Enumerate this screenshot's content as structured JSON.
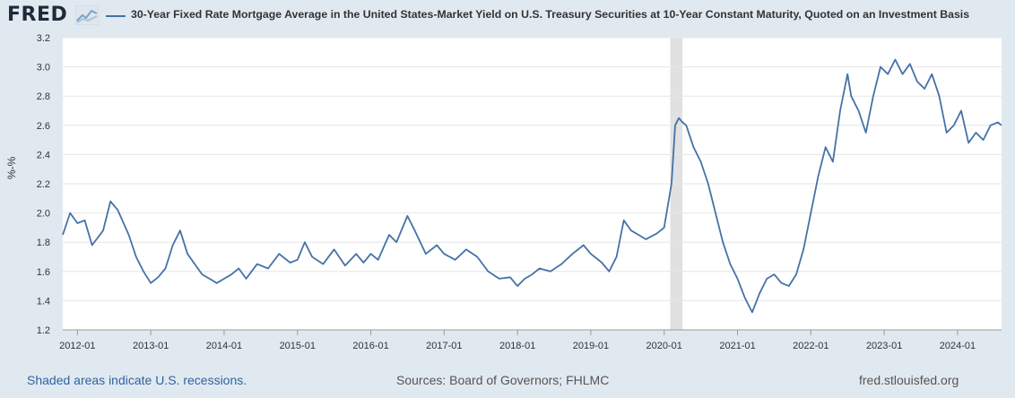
{
  "header": {
    "logo": "FRED",
    "title": "30-Year Fixed Rate Mortgage Average in the United States-Market Yield on U.S. Treasury Securities at 10-Year Constant Maturity, Quoted on an Investment Basis"
  },
  "footer": {
    "recession_note": "Shaded areas indicate U.S. recessions.",
    "sources": "Sources: Board of Governors; FHLMC",
    "site": "fred.stlouisfed.org"
  },
  "colors": {
    "line": "#4572a7",
    "background": "#e1e9f0",
    "plot": "#ffffff",
    "recession": "#e1e1e1"
  },
  "chart_data": {
    "type": "line",
    "title": "30-Year Fixed Rate Mortgage Average in the United States-Market Yield on U.S. Treasury Securities at 10-Year Constant Maturity, Quoted on an Investment Basis",
    "ylabel": "%-%",
    "xlabel": "",
    "ylim": [
      1.2,
      3.2
    ],
    "xlim": [
      2011.8,
      2024.6
    ],
    "yticks": [
      "1.2",
      "1.4",
      "1.6",
      "1.8",
      "2.0",
      "2.2",
      "2.4",
      "2.6",
      "2.8",
      "3.0",
      "3.2"
    ],
    "xticks": [
      "2012-01",
      "2013-01",
      "2014-01",
      "2015-01",
      "2016-01",
      "2017-01",
      "2018-01",
      "2019-01",
      "2020-01",
      "2021-01",
      "2022-01",
      "2023-01",
      "2024-01"
    ],
    "grid": true,
    "recessions": [
      [
        2020.083,
        2020.25
      ]
    ],
    "series": [
      {
        "x": [
          2011.8,
          2011.9,
          2012.0,
          2012.1,
          2012.2,
          2012.35,
          2012.45,
          2012.55,
          2012.7,
          2012.8,
          2012.9,
          2013.0,
          2013.1,
          2013.2,
          2013.3,
          2013.4,
          2013.5,
          2013.6,
          2013.7,
          2013.8,
          2013.9,
          2014.0,
          2014.1,
          2014.2,
          2014.3,
          2014.45,
          2014.6,
          2014.75,
          2014.9,
          2015.0,
          2015.1,
          2015.2,
          2015.35,
          2015.5,
          2015.65,
          2015.8,
          2015.9,
          2016.0,
          2016.1,
          2016.25,
          2016.35,
          2016.5,
          2016.6,
          2016.75,
          2016.9,
          2017.0,
          2017.15,
          2017.3,
          2017.45,
          2017.6,
          2017.75,
          2017.9,
          2018.0,
          2018.1,
          2018.2,
          2018.3,
          2018.45,
          2018.6,
          2018.75,
          2018.9,
          2019.0,
          2019.15,
          2019.25,
          2019.35,
          2019.45,
          2019.55,
          2019.65,
          2019.75,
          2019.9,
          2020.0,
          2020.1,
          2020.15,
          2020.2,
          2020.25,
          2020.3,
          2020.4,
          2020.5,
          2020.6,
          2020.7,
          2020.8,
          2020.9,
          2021.0,
          2021.1,
          2021.2,
          2021.3,
          2021.4,
          2021.5,
          2021.6,
          2021.7,
          2021.8,
          2021.9,
          2022.0,
          2022.1,
          2022.2,
          2022.3,
          2022.4,
          2022.5,
          2022.55,
          2022.65,
          2022.75,
          2022.85,
          2022.95,
          2023.05,
          2023.15,
          2023.25,
          2023.35,
          2023.45,
          2023.55,
          2023.65,
          2023.75,
          2023.85,
          2023.95,
          2024.05,
          2024.15,
          2024.25,
          2024.35,
          2024.45,
          2024.55,
          2024.6
        ],
        "values": [
          1.85,
          2.0,
          1.93,
          1.95,
          1.78,
          1.88,
          2.08,
          2.02,
          1.85,
          1.7,
          1.6,
          1.52,
          1.56,
          1.62,
          1.78,
          1.88,
          1.72,
          1.65,
          1.58,
          1.55,
          1.52,
          1.55,
          1.58,
          1.62,
          1.55,
          1.65,
          1.62,
          1.72,
          1.66,
          1.68,
          1.8,
          1.7,
          1.65,
          1.75,
          1.64,
          1.72,
          1.66,
          1.72,
          1.68,
          1.85,
          1.8,
          1.98,
          1.88,
          1.72,
          1.78,
          1.72,
          1.68,
          1.75,
          1.7,
          1.6,
          1.55,
          1.56,
          1.5,
          1.55,
          1.58,
          1.62,
          1.6,
          1.65,
          1.72,
          1.78,
          1.72,
          1.66,
          1.6,
          1.7,
          1.95,
          1.88,
          1.85,
          1.82,
          1.86,
          1.9,
          2.2,
          2.6,
          2.65,
          2.62,
          2.6,
          2.45,
          2.35,
          2.2,
          2.0,
          1.8,
          1.65,
          1.55,
          1.42,
          1.32,
          1.45,
          1.55,
          1.58,
          1.52,
          1.5,
          1.58,
          1.75,
          2.0,
          2.25,
          2.45,
          2.35,
          2.7,
          2.95,
          2.8,
          2.7,
          2.55,
          2.8,
          3.0,
          2.95,
          3.05,
          2.95,
          3.02,
          2.9,
          2.85,
          2.95,
          2.8,
          2.55,
          2.6,
          2.7,
          2.48,
          2.55,
          2.5,
          2.6,
          2.62,
          2.6
        ]
      }
    ]
  }
}
